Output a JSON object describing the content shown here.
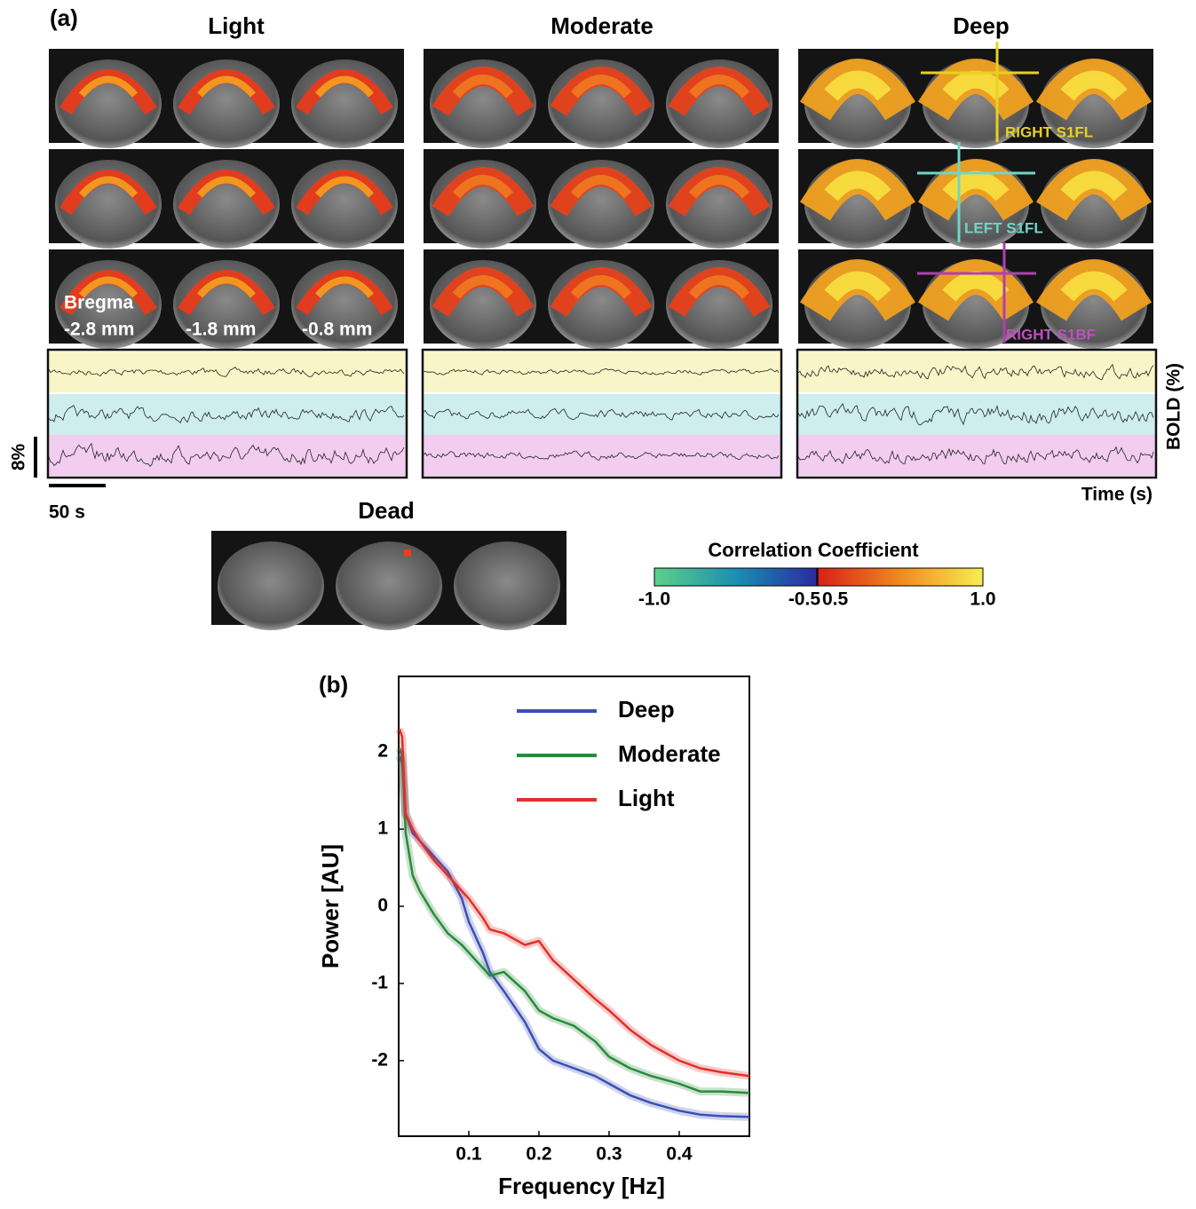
{
  "panel_a": {
    "label": "(a)",
    "columns": [
      "Light",
      "Moderate",
      "Deep"
    ],
    "dead_title": "Dead",
    "bregma_label": "Bregma",
    "slices": [
      "-2.8 mm",
      "-1.8 mm",
      "-0.8 mm"
    ],
    "rois": [
      "RIGHT S1FL",
      "LEFT S1FL",
      "RIGHT S1BF"
    ],
    "y_label": "BOLD (%)",
    "x_label": "Time (s)",
    "scale_y": "8%",
    "scale_x": "50 s",
    "colorbar": {
      "title": "Correlation Coefficient",
      "ticks": [
        {
          "value": -1,
          "label": "-1.0"
        },
        {
          "value": -0.5,
          "label": "-0.5"
        },
        {
          "value": 0.5,
          "label": "0.5"
        },
        {
          "value": 1,
          "label": "1.0"
        }
      ]
    }
  },
  "chart_data": {
    "type": "line",
    "label": "(b)",
    "x_label": "Frequency [Hz]",
    "y_label": "Power [AU]",
    "x": [
      0.001,
      0.005,
      0.01,
      0.02,
      0.03,
      0.05,
      0.07,
      0.09,
      0.1,
      0.12,
      0.13,
      0.15,
      0.18,
      0.2,
      0.22,
      0.25,
      0.28,
      0.3,
      0.33,
      0.36,
      0.4,
      0.43,
      0.46,
      0.5
    ],
    "series": [
      {
        "name": "Deep",
        "color": "#3a4fb5",
        "values": [
          1.95,
          1.85,
          1.2,
          0.95,
          0.85,
          0.65,
          0.45,
          0.1,
          -0.2,
          -0.6,
          -0.85,
          -1.1,
          -1.5,
          -1.85,
          -2.0,
          -2.1,
          -2.2,
          -2.3,
          -2.45,
          -2.55,
          -2.65,
          -2.7,
          -2.72,
          -2.73
        ]
      },
      {
        "name": "Moderate",
        "color": "#2a8a3a",
        "values": [
          2.05,
          1.95,
          0.95,
          0.4,
          0.2,
          -0.1,
          -0.35,
          -0.5,
          -0.6,
          -0.8,
          -0.9,
          -0.85,
          -1.1,
          -1.35,
          -1.45,
          -1.55,
          -1.75,
          -1.95,
          -2.1,
          -2.2,
          -2.3,
          -2.4,
          -2.4,
          -2.42
        ]
      },
      {
        "name": "Light",
        "color": "#e0302a",
        "values": [
          2.3,
          2.2,
          1.2,
          1.0,
          0.85,
          0.6,
          0.4,
          0.2,
          0.1,
          -0.15,
          -0.3,
          -0.35,
          -0.5,
          -0.45,
          -0.7,
          -0.95,
          -1.2,
          -1.35,
          -1.6,
          -1.8,
          -2.0,
          -2.1,
          -2.15,
          -2.2
        ]
      }
    ],
    "xlim": [
      0,
      0.5
    ],
    "ylim": [
      -2.98,
      2.98
    ],
    "xticks": [
      0.1,
      0.2,
      0.3,
      0.4
    ],
    "yticks": [
      -2,
      -1,
      0,
      1,
      2
    ],
    "legend": "upper right"
  }
}
